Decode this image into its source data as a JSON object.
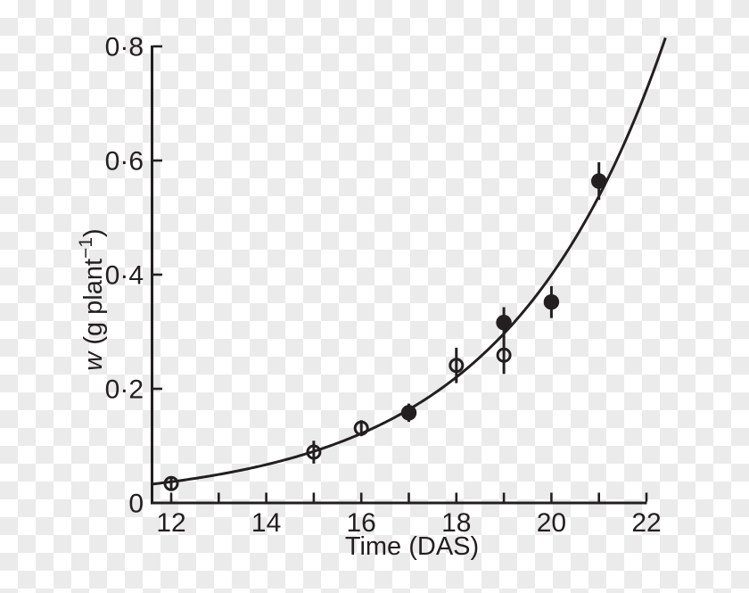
{
  "colors": {
    "ink": "#231f20",
    "background_checker_light": "#ffffff",
    "background_checker_dark": "#ebebeb"
  },
  "chart_data": {
    "type": "scatter",
    "title": "",
    "xlabel": "Time (DAS)",
    "ylabel": "w (g plant−1)",
    "ylabel_parts": {
      "symbol": "w",
      "unit_open": " (g plant",
      "exponent": "−1",
      "unit_close": ")"
    },
    "x_axis": {
      "min": 11.6,
      "max": 22,
      "major_ticks": [
        12,
        14,
        16,
        18,
        20,
        22
      ],
      "major_tick_labels": [
        "12",
        "14",
        "16",
        "18",
        "20",
        "22"
      ],
      "minor_ticks": [
        13,
        15,
        17,
        19,
        21
      ]
    },
    "y_axis": {
      "min": 0,
      "max": 0.8,
      "ticks": [
        0,
        0.2,
        0.4,
        0.6,
        0.8
      ],
      "tick_labels": [
        "0",
        "0·2",
        "0·4",
        "0·6",
        "0·8"
      ]
    },
    "grid": false,
    "legend": "none",
    "series": [
      {
        "name": "open-circles",
        "marker": "open-circle",
        "points": [
          {
            "x": 12,
            "y": 0.034,
            "err": 0.012
          },
          {
            "x": 15,
            "y": 0.089,
            "err": 0.02
          },
          {
            "x": 16,
            "y": 0.131,
            "err": 0.014
          },
          {
            "x": 18,
            "y": 0.241,
            "err": 0.031
          },
          {
            "x": 19,
            "y": 0.259,
            "err": 0.033
          }
        ]
      },
      {
        "name": "filled-circles",
        "marker": "filled-circle",
        "points": [
          {
            "x": 17,
            "y": 0.158,
            "err": 0.016
          },
          {
            "x": 19,
            "y": 0.316,
            "err": 0.027
          },
          {
            "x": 20,
            "y": 0.352,
            "err": 0.028
          },
          {
            "x": 21,
            "y": 0.564,
            "err": 0.033
          }
        ]
      }
    ],
    "fit_curve": {
      "type": "exponential",
      "formula": "w = a*exp(b*t)",
      "a": 0.001047,
      "b": 0.2972,
      "t_start": 11.6,
      "t_end": 22.4
    }
  }
}
